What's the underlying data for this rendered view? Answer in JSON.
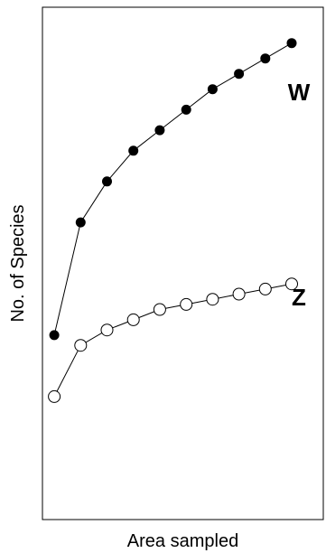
{
  "chart_data": {
    "type": "line",
    "title": "",
    "xlabel": "Area sampled",
    "ylabel": "No. of Species",
    "x": [
      1,
      2,
      3,
      4,
      5,
      6,
      7,
      8,
      9,
      10
    ],
    "xlim": [
      0.55,
      11.2
    ],
    "ylim": [
      0,
      100
    ],
    "grid": false,
    "legend": "none",
    "series": [
      {
        "name": "W",
        "marker": "filled-circle",
        "values": [
          36,
          58,
          66,
          72,
          76,
          80,
          84,
          87,
          90,
          93
        ]
      },
      {
        "name": "Z",
        "marker": "open-circle",
        "values": [
          24,
          34,
          37,
          39,
          41,
          42,
          43,
          44,
          45,
          46
        ]
      }
    ]
  }
}
